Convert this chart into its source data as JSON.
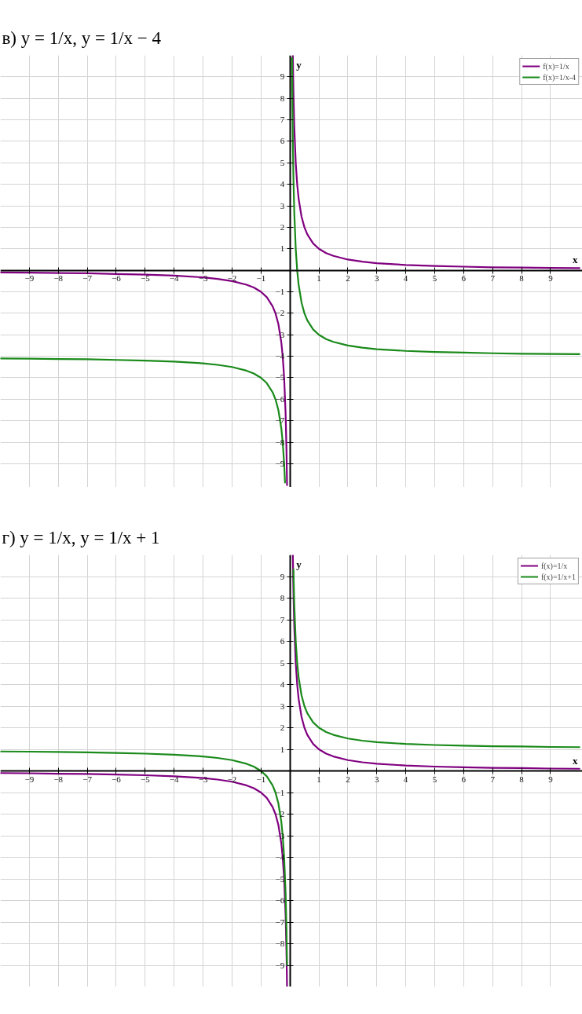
{
  "chart_data": [
    {
      "type": "line",
      "title": "в) y = 1/x,    y = 1/x − 4",
      "xlabel": "x",
      "ylabel": "y",
      "xlim": [
        -10,
        10.1
      ],
      "ylim": [
        -10.1,
        10
      ],
      "xticks": [
        -9,
        -8,
        -7,
        -6,
        -5,
        -4,
        -3,
        -2,
        -1,
        1,
        2,
        3,
        4,
        5,
        6,
        7,
        8,
        9
      ],
      "yticks": [
        -9,
        -8,
        -7,
        -6,
        -5,
        -4,
        -3,
        -2,
        -1,
        1,
        2,
        3,
        4,
        5,
        6,
        7,
        8,
        9
      ],
      "grid": true,
      "legend": "top right",
      "series": [
        {
          "name": "f(x)=1/x",
          "color": "#800080",
          "x": [
            -10,
            -9,
            -8,
            -7,
            -6,
            -5,
            -4,
            -3,
            -2.5,
            -2,
            -1.5,
            -1.25,
            -1,
            -0.8,
            -0.6,
            -0.5,
            -0.4,
            -0.3,
            -0.25,
            -0.2,
            -0.15,
            -0.12,
            -0.1,
            0,
            0.1,
            0.12,
            0.15,
            0.2,
            0.25,
            0.3,
            0.4,
            0.5,
            0.6,
            0.8,
            1,
            1.25,
            1.5,
            2,
            2.5,
            3,
            4,
            5,
            6,
            7,
            8,
            9,
            10
          ],
          "values": [
            -0.1,
            -0.11,
            -0.13,
            -0.14,
            -0.17,
            -0.2,
            -0.25,
            -0.33,
            -0.4,
            -0.5,
            -0.67,
            -0.8,
            -1,
            -1.25,
            -1.67,
            -2,
            -2.5,
            -3.33,
            -4,
            -5,
            -6.67,
            -8.33,
            -10,
            null,
            10,
            8.33,
            6.67,
            5,
            4,
            3.33,
            2.5,
            2,
            1.67,
            1.25,
            1,
            0.8,
            0.67,
            0.5,
            0.4,
            0.33,
            0.25,
            0.2,
            0.17,
            0.14,
            0.13,
            0.11,
            0.1
          ]
        },
        {
          "name": "f(x)=1/x-4",
          "color": "#1a8a1a",
          "x": [
            -10,
            -9,
            -8,
            -7,
            -6,
            -5,
            -4,
            -3,
            -2.5,
            -2,
            -1.5,
            -1.25,
            -1,
            -0.8,
            -0.6,
            -0.5,
            -0.4,
            -0.3,
            -0.25,
            -0.2,
            -0.17,
            0,
            0.072,
            0.08,
            0.1,
            0.12,
            0.15,
            0.2,
            0.25,
            0.3,
            0.4,
            0.5,
            0.6,
            0.8,
            1,
            1.25,
            1.5,
            2,
            2.5,
            3,
            4,
            5,
            6,
            7,
            8,
            9,
            10
          ],
          "values": [
            -4.1,
            -4.11,
            -4.13,
            -4.14,
            -4.17,
            -4.2,
            -4.25,
            -4.33,
            -4.4,
            -4.5,
            -4.67,
            -4.8,
            -5,
            -5.25,
            -5.67,
            -6,
            -6.5,
            -7.33,
            -8,
            -9,
            -9.88,
            null,
            9.89,
            8.5,
            6,
            4.33,
            2.67,
            1,
            0,
            -0.67,
            -1.5,
            -2,
            -2.33,
            -2.75,
            -3,
            -3.2,
            -3.33,
            -3.5,
            -3.6,
            -3.67,
            -3.75,
            -3.8,
            -3.83,
            -3.86,
            -3.88,
            -3.89,
            -3.9
          ]
        }
      ]
    },
    {
      "type": "line",
      "title": "г) y = 1/x,    y = 1/x + 1",
      "xlabel": "x",
      "ylabel": "y",
      "xlim": [
        -10,
        10.1
      ],
      "ylim": [
        -10,
        10
      ],
      "xticks": [
        -9,
        -8,
        -7,
        -6,
        -5,
        -4,
        -3,
        -2,
        -1,
        1,
        2,
        3,
        4,
        5,
        6,
        7,
        8,
        9
      ],
      "yticks": [
        -9,
        -8,
        -7,
        -6,
        -5,
        -4,
        -3,
        -2,
        -1,
        1,
        2,
        3,
        4,
        5,
        6,
        7,
        8,
        9
      ],
      "grid": true,
      "legend": "top right",
      "series": [
        {
          "name": "f(x)=1/x",
          "color": "#800080",
          "x": [
            -10,
            -9,
            -8,
            -7,
            -6,
            -5,
            -4,
            -3,
            -2.5,
            -2,
            -1.5,
            -1.25,
            -1,
            -0.8,
            -0.6,
            -0.5,
            -0.4,
            -0.3,
            -0.25,
            -0.2,
            -0.15,
            -0.12,
            -0.1,
            0,
            0.1,
            0.12,
            0.15,
            0.2,
            0.25,
            0.3,
            0.4,
            0.5,
            0.6,
            0.8,
            1,
            1.25,
            1.5,
            2,
            2.5,
            3,
            4,
            5,
            6,
            7,
            8,
            9,
            10
          ],
          "values": [
            -0.1,
            -0.11,
            -0.13,
            -0.14,
            -0.17,
            -0.2,
            -0.25,
            -0.33,
            -0.4,
            -0.5,
            -0.67,
            -0.8,
            -1,
            -1.25,
            -1.67,
            -2,
            -2.5,
            -3.33,
            -4,
            -5,
            -6.67,
            -8.33,
            -10,
            null,
            10,
            8.33,
            6.67,
            5,
            4,
            3.33,
            2.5,
            2,
            1.67,
            1.25,
            1,
            0.8,
            0.67,
            0.5,
            0.4,
            0.33,
            0.25,
            0.2,
            0.17,
            0.14,
            0.13,
            0.11,
            0.1
          ]
        },
        {
          "name": "f(x)=1/x+1",
          "color": "#1a8a1a",
          "x": [
            -10,
            -9,
            -8,
            -7,
            -6,
            -5,
            -4,
            -3,
            -2.5,
            -2,
            -1.5,
            -1.25,
            -1,
            -0.8,
            -0.6,
            -0.5,
            -0.4,
            -0.3,
            -0.25,
            -0.2,
            -0.15,
            -0.12,
            -0.1,
            0,
            0.12,
            0.15,
            0.2,
            0.25,
            0.3,
            0.4,
            0.5,
            0.6,
            0.8,
            1,
            1.25,
            1.5,
            2,
            2.5,
            3,
            4,
            5,
            6,
            7,
            8,
            9,
            10
          ],
          "values": [
            0.9,
            0.89,
            0.88,
            0.86,
            0.83,
            0.8,
            0.75,
            0.67,
            0.6,
            0.5,
            0.33,
            0.2,
            0,
            -0.25,
            -0.67,
            -1,
            -1.5,
            -2.33,
            -3,
            -4,
            -5.67,
            -7.33,
            -9,
            null,
            9.33,
            7.67,
            6,
            5,
            4.33,
            3.5,
            3,
            2.67,
            2.25,
            2,
            1.8,
            1.67,
            1.5,
            1.4,
            1.33,
            1.25,
            1.2,
            1.17,
            1.14,
            1.13,
            1.11,
            1.1
          ]
        }
      ]
    }
  ]
}
